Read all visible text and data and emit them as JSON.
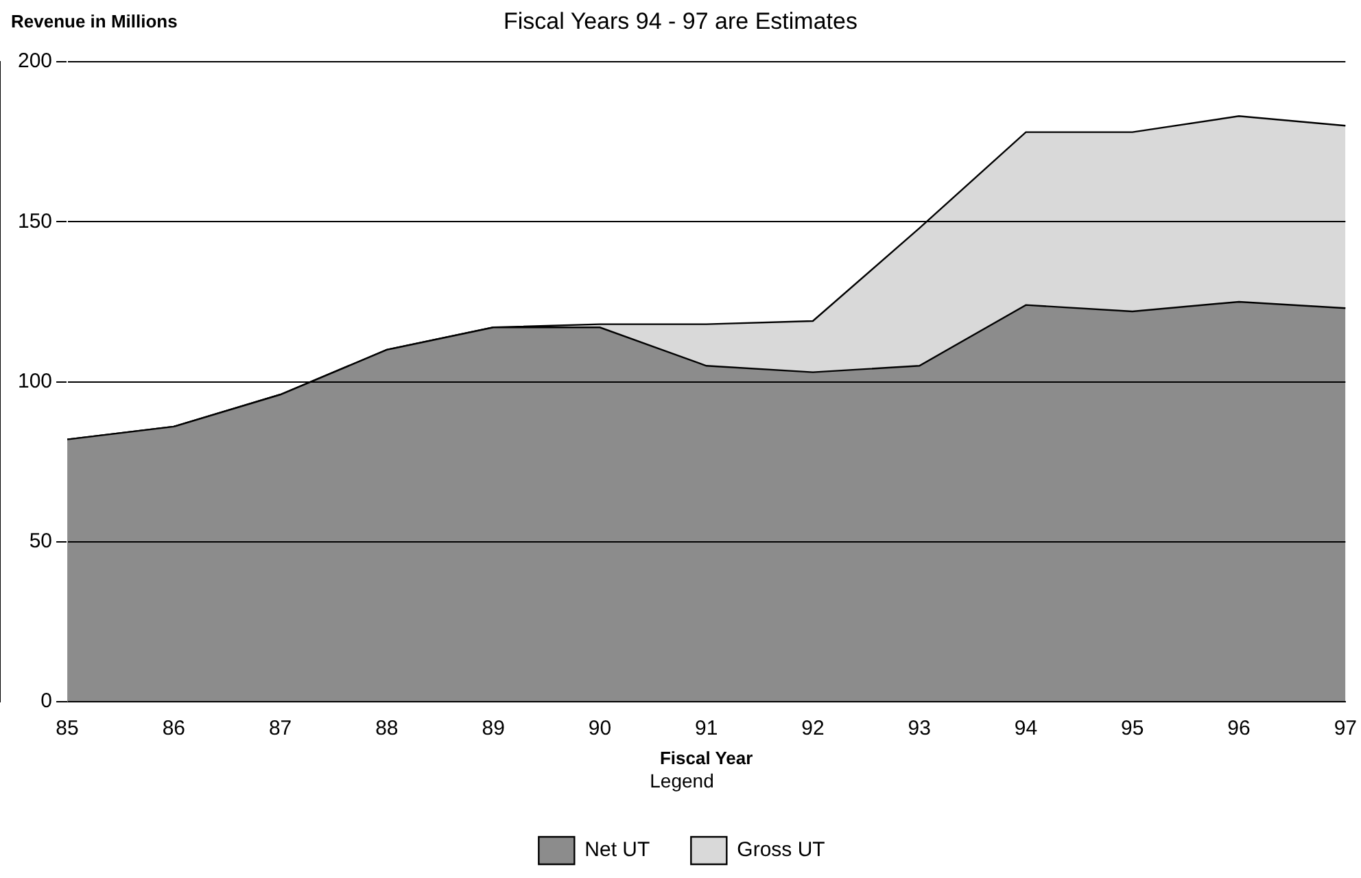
{
  "chart_data": {
    "type": "area",
    "title": "Fiscal Years 94 - 97 are Estimates",
    "xlabel": "Fiscal Year",
    "ylabel": "Revenue in Millions",
    "legend_title": "Legend",
    "categories": [
      "85",
      "86",
      "87",
      "88",
      "89",
      "90",
      "91",
      "92",
      "93",
      "94",
      "95",
      "96",
      "97"
    ],
    "series": [
      {
        "name": "Gross UT",
        "color": "#d9d9d9",
        "values": [
          82,
          86,
          96,
          110,
          117,
          118,
          118,
          119,
          148,
          178,
          178,
          183,
          180
        ]
      },
      {
        "name": "Net UT",
        "color": "#8c8c8c",
        "values": [
          82,
          86,
          96,
          110,
          117,
          117,
          105,
          103,
          105,
          124,
          122,
          125,
          123
        ]
      }
    ],
    "ylim": [
      0,
      200
    ],
    "yticks": [
      0,
      50,
      100,
      150,
      200
    ],
    "grid": "y",
    "legend": "bottom"
  }
}
